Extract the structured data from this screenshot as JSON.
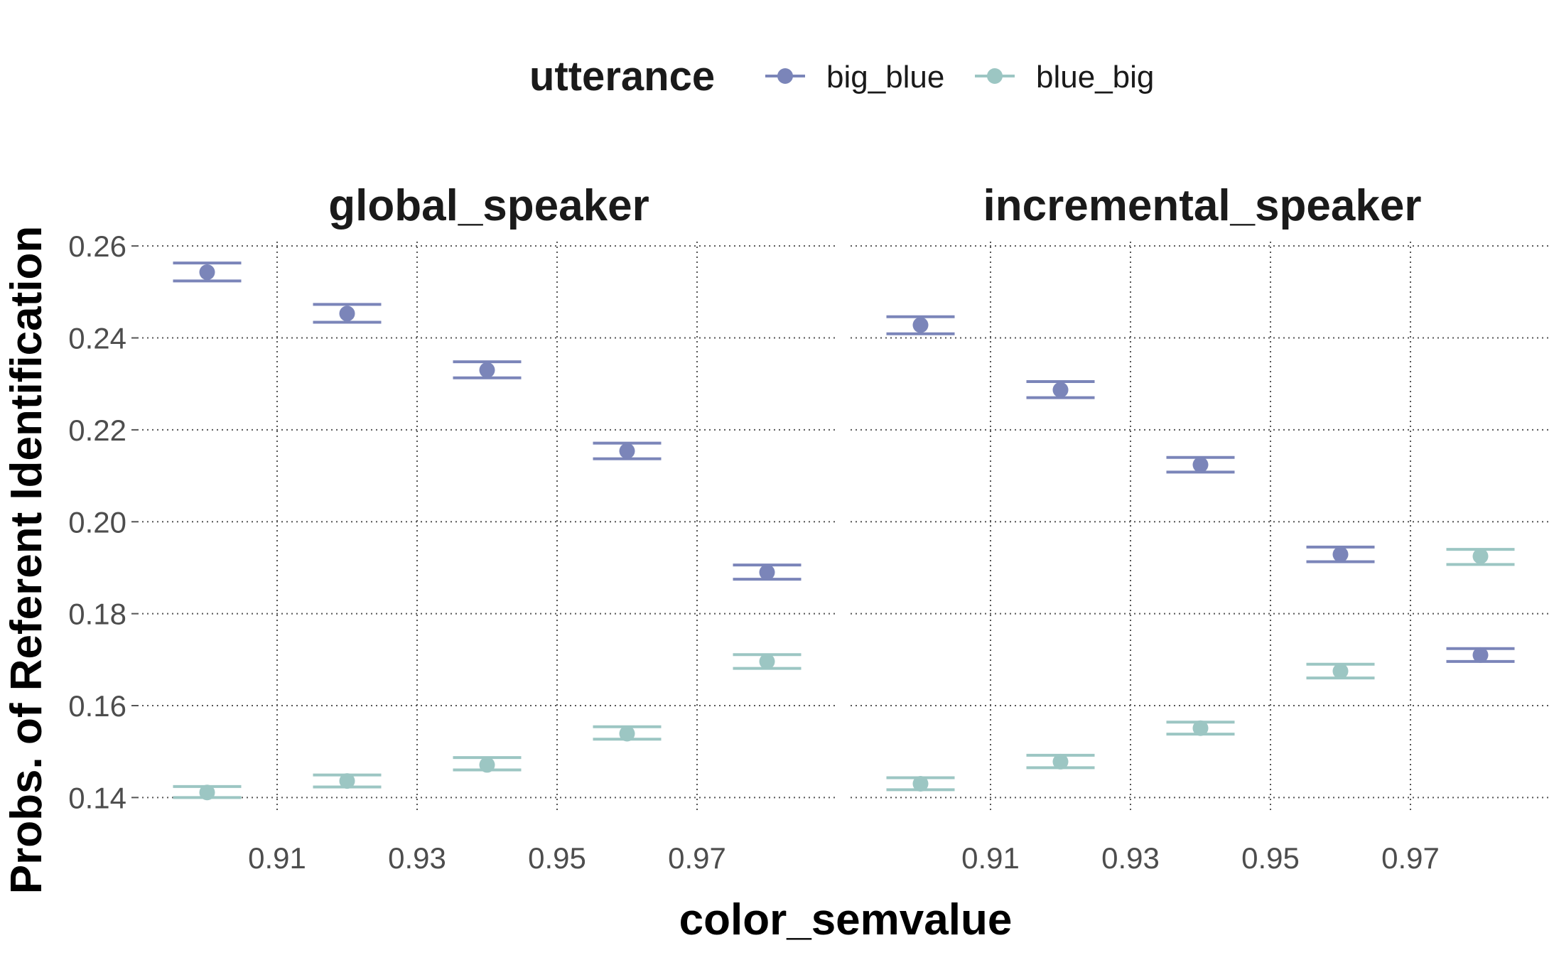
{
  "chart_data": {
    "type": "scatter",
    "legend": {
      "title": "utterance",
      "position": "top",
      "items": [
        {
          "name": "big_blue",
          "color": "#7b85b9"
        },
        {
          "name": "blue_big",
          "color": "#9cc6c3"
        }
      ]
    },
    "xlabel": "color_semvalue",
    "ylabel": "Probs. of Referent Identification",
    "xlim": [
      0.89,
      0.99
    ],
    "ylim": [
      0.1365,
      0.2625
    ],
    "x_ticks": [
      0.91,
      0.93,
      0.95,
      0.97
    ],
    "x_tick_labels": [
      "0.91",
      "0.93",
      "0.95",
      "0.97"
    ],
    "y_ticks": [
      0.14,
      0.16,
      0.18,
      0.2,
      0.22,
      0.24,
      0.26
    ],
    "y_tick_labels": [
      "0.14",
      "0.16",
      "0.18",
      "0.20",
      "0.22",
      "0.24",
      "0.26"
    ],
    "grid": true,
    "panels": [
      {
        "title": "global_speaker",
        "series": [
          {
            "name": "big_blue",
            "x": [
              0.9,
              0.92,
              0.94,
              0.96,
              0.98
            ],
            "y": [
              0.2543,
              0.2453,
              0.233,
              0.2154,
              0.189
            ],
            "y_low": [
              0.2524,
              0.2434,
              0.2313,
              0.2137,
              0.1875
            ],
            "y_high": [
              0.2563,
              0.2473,
              0.2348,
              0.2171,
              0.1906
            ]
          },
          {
            "name": "blue_big",
            "x": [
              0.9,
              0.92,
              0.94,
              0.96,
              0.98
            ],
            "y": [
              0.1411,
              0.1436,
              0.1471,
              0.1539,
              0.1696
            ],
            "y_low": [
              0.14,
              0.1423,
              0.146,
              0.1527,
              0.1681
            ],
            "y_high": [
              0.1424,
              0.1449,
              0.1487,
              0.1554,
              0.1711
            ]
          }
        ]
      },
      {
        "title": "incremental_speaker",
        "series": [
          {
            "name": "big_blue",
            "x": [
              0.9,
              0.92,
              0.94,
              0.96,
              0.98
            ],
            "y": [
              0.2428,
              0.2287,
              0.2124,
              0.1929,
              0.171
            ],
            "y_low": [
              0.2409,
              0.227,
              0.2108,
              0.1913,
              0.1696
            ],
            "y_high": [
              0.2446,
              0.2305,
              0.214,
              0.1945,
              0.1724
            ]
          },
          {
            "name": "blue_big",
            "x": [
              0.9,
              0.92,
              0.94,
              0.96,
              0.98
            ],
            "y": [
              0.143,
              0.1478,
              0.1551,
              0.1675,
              0.1925
            ],
            "y_low": [
              0.1417,
              0.1465,
              0.1538,
              0.166,
              0.1907
            ],
            "y_high": [
              0.1443,
              0.1492,
              0.1564,
              0.169,
              0.194
            ]
          }
        ]
      }
    ]
  }
}
